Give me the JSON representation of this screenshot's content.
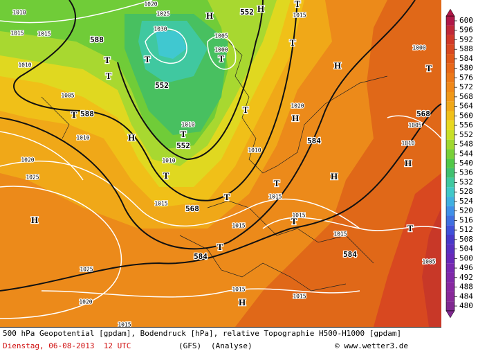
{
  "map": {
    "labels": [
      "1010",
      "1020",
      "1025",
      "H",
      "552",
      "H",
      "T",
      "1015",
      "1015",
      "1015",
      "588",
      "1030",
      "1005",
      "1000",
      "T",
      "T",
      "1000",
      "1010",
      "T",
      "T",
      "T",
      "H",
      "T",
      "552",
      "1005",
      "1020",
      "588",
      "T",
      "T",
      "H",
      "568",
      "1005",
      "1010",
      "T",
      "552",
      "1010",
      "H",
      "584",
      "1010",
      "1010",
      "1020",
      "1010",
      "H",
      "T",
      "1025",
      "H",
      "T",
      "1015",
      "T",
      "1015",
      "568",
      "H",
      "1015",
      "T",
      "1015",
      "T",
      "1015",
      "T",
      "584",
      "584",
      "1005",
      "1025",
      "1020",
      "H",
      "1015",
      "1015",
      "1015"
    ]
  },
  "legend": {
    "values": [
      600,
      596,
      592,
      588,
      584,
      580,
      576,
      572,
      568,
      564,
      560,
      556,
      552,
      548,
      544,
      540,
      536,
      532,
      528,
      524,
      520,
      516,
      512,
      508,
      504,
      500,
      496,
      492,
      488,
      484,
      480
    ],
    "colors": [
      "#b01848",
      "#c02838",
      "#d03828",
      "#d84820",
      "#e05818",
      "#e86818",
      "#ec7818",
      "#f08818",
      "#f09818",
      "#f0a818",
      "#f0c018",
      "#e8d820",
      "#c8e028",
      "#a0d830",
      "#78d038",
      "#50c848",
      "#40c070",
      "#40c8a0",
      "#40c8c8",
      "#40b0e0",
      "#4090e8",
      "#4070e0",
      "#4050d8",
      "#4838c8",
      "#5830c0",
      "#6828b8",
      "#7828b0",
      "#8028a8",
      "#8828a0",
      "#882898",
      "#802890"
    ]
  },
  "footer": {
    "description": "500 hPa Geopotential [gpdam], Bodendruck [hPa], relative Topographie H500-H1000 [gpdam]",
    "date": "Dienstag, 06-08-2013  12 UTC",
    "model": "(GFS)",
    "run": "(Analyse)",
    "credit": "© www.wetter3.de"
  }
}
